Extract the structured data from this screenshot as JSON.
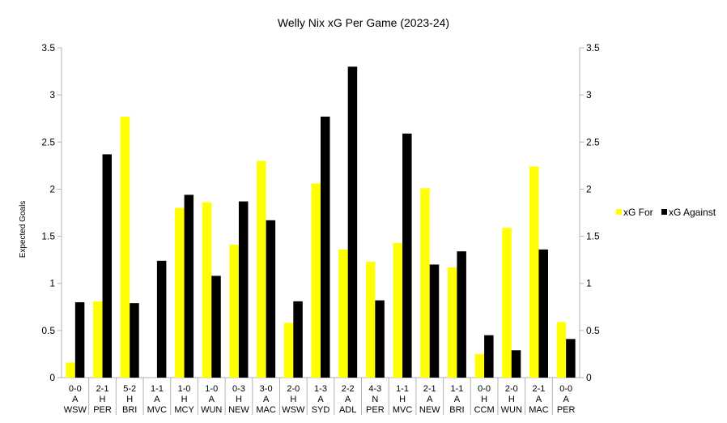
{
  "chart_data": {
    "type": "bar",
    "title": "Welly Nix xG Per Game (2023-24)",
    "xlabel": "",
    "ylabel": "Expected Goals",
    "ylim": [
      0,
      3.5
    ],
    "yticks": [
      "0",
      "0.5",
      "1",
      "1.5",
      "2",
      "2.5",
      "3",
      "3.5"
    ],
    "grid": false,
    "legend_position": "right",
    "secondary_axis": true,
    "categories": [
      [
        "0-0",
        "A",
        "WSW"
      ],
      [
        "2-1",
        "H",
        "PER"
      ],
      [
        "5-2",
        "H",
        "BRI"
      ],
      [
        "1-1",
        "A",
        "MVC"
      ],
      [
        "1-0",
        "H",
        "MCY"
      ],
      [
        "1-0",
        "A",
        "WUN"
      ],
      [
        "0-3",
        "H",
        "NEW"
      ],
      [
        "3-0",
        "A",
        "MAC"
      ],
      [
        "2-0",
        "H",
        "WSW"
      ],
      [
        "1-3",
        "A",
        "SYD"
      ],
      [
        "2-2",
        "A",
        "ADL"
      ],
      [
        "4-3",
        "N",
        "PER"
      ],
      [
        "1-1",
        "H",
        "MVC"
      ],
      [
        "2-1",
        "A",
        "NEW"
      ],
      [
        "1-1",
        "A",
        "BRI"
      ],
      [
        "0-0",
        "H",
        "CCM"
      ],
      [
        "2-0",
        "H",
        "WUN"
      ],
      [
        "2-1",
        "A",
        "MAC"
      ],
      [
        "0-0",
        "A",
        "PER"
      ]
    ],
    "series": [
      {
        "name": "xG For",
        "color": "#ffff00",
        "values": [
          0.16,
          0.81,
          2.77,
          0.0,
          1.8,
          1.86,
          1.41,
          2.3,
          0.58,
          2.06,
          1.36,
          1.23,
          1.43,
          2.01,
          1.17,
          0.25,
          1.59,
          2.24,
          0.59
        ]
      },
      {
        "name": "xG Against",
        "color": "#000000",
        "values": [
          0.8,
          2.37,
          0.79,
          1.24,
          1.94,
          1.08,
          1.87,
          1.67,
          0.81,
          2.77,
          3.3,
          0.82,
          2.59,
          1.2,
          1.34,
          0.45,
          0.29,
          1.36,
          0.41
        ]
      }
    ]
  }
}
